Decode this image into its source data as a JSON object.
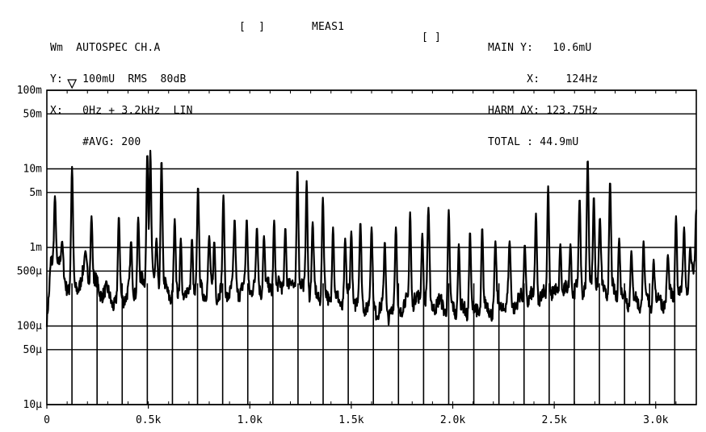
{
  "header": {
    "left": [
      {
        "label": "Wm",
        "value": "AUTOSPEC CH.A"
      },
      {
        "label": "Y:",
        "value": "100mU  RMS  80dB"
      },
      {
        "label": "X:",
        "value": "0Hz + 3.2kHz  LIN"
      },
      {
        "label": "",
        "value": "#AVG: 200"
      }
    ],
    "bracket_1": "[  ]",
    "meas": "MEAS1",
    "bracket_2": "[ ]",
    "right": [
      {
        "label": "MAIN Y:",
        "value": "10.6mU"
      },
      {
        "label": "X:",
        "value": "124Hz"
      },
      {
        "label": "HARM ΔX:",
        "value": "123.75Hz"
      },
      {
        "label": "TOTAL :",
        "value": "44.9mU"
      }
    ]
  },
  "chart_data": {
    "type": "line",
    "title": "AUTOSPEC CH.A",
    "xlabel": "",
    "ylabel": "",
    "xlim": [
      0,
      3200
    ],
    "ylim": [
      1e-05,
      0.1
    ],
    "yscale": "log",
    "grid": true,
    "x_ticks": [
      {
        "value": 0,
        "label": "0"
      },
      {
        "value": 500,
        "label": "0.5k"
      },
      {
        "value": 1000,
        "label": "1.0k"
      },
      {
        "value": 1500,
        "label": "1.5k"
      },
      {
        "value": 2000,
        "label": "2.0k"
      },
      {
        "value": 2500,
        "label": "2.5k"
      },
      {
        "value": 3000,
        "label": "3.0k"
      }
    ],
    "y_ticks": [
      {
        "value": 0.1,
        "label": "100m"
      },
      {
        "value": 0.05,
        "label": "50m"
      },
      {
        "value": 0.01,
        "label": "10m"
      },
      {
        "value": 0.005,
        "label": "5m"
      },
      {
        "value": 0.001,
        "label": "1m"
      },
      {
        "value": 0.0005,
        "label": "500µ"
      },
      {
        "value": 0.0001,
        "label": "100µ"
      },
      {
        "value": 5e-05,
        "label": "50µ"
      },
      {
        "value": 1e-05,
        "label": "10µ"
      }
    ],
    "marker": {
      "x": 124,
      "y": 0.0106
    },
    "harmonic_spacing_hz": 123.75,
    "harmonic_count": 25,
    "baseline": [
      [
        0,
        0.00012
      ],
      [
        10,
        0.0002
      ],
      [
        20,
        0.0006
      ],
      [
        40,
        0.0007
      ],
      [
        60,
        0.0006
      ],
      [
        90,
        0.0004
      ],
      [
        110,
        0.0003
      ],
      [
        140,
        0.0003
      ],
      [
        170,
        0.0004
      ],
      [
        200,
        0.0005
      ],
      [
        230,
        0.00035
      ],
      [
        260,
        0.0003
      ],
      [
        300,
        0.00025
      ],
      [
        340,
        0.0002
      ],
      [
        380,
        0.00025
      ],
      [
        420,
        0.00028
      ],
      [
        460,
        0.00032
      ],
      [
        500,
        0.0004
      ],
      [
        540,
        0.00035
      ],
      [
        580,
        0.0003
      ],
      [
        620,
        0.00025
      ],
      [
        660,
        0.00022
      ],
      [
        700,
        0.00025
      ],
      [
        750,
        0.0003
      ],
      [
        800,
        0.00028
      ],
      [
        850,
        0.00025
      ],
      [
        900,
        0.00028
      ],
      [
        950,
        0.0003
      ],
      [
        1000,
        0.00032
      ],
      [
        1050,
        0.0003
      ],
      [
        1100,
        0.00028
      ],
      [
        1150,
        0.0003
      ],
      [
        1200,
        0.00033
      ],
      [
        1250,
        0.0003
      ],
      [
        1300,
        0.00027
      ],
      [
        1350,
        0.00025
      ],
      [
        1400,
        0.00022
      ],
      [
        1450,
        0.0002
      ],
      [
        1500,
        0.00022
      ],
      [
        1550,
        0.0002
      ],
      [
        1600,
        0.00018
      ],
      [
        1650,
        0.00016
      ],
      [
        1700,
        0.00015
      ],
      [
        1750,
        0.00017
      ],
      [
        1800,
        0.0002
      ],
      [
        1850,
        0.00022
      ],
      [
        1900,
        0.0002
      ],
      [
        1950,
        0.00018
      ],
      [
        2000,
        0.00016
      ],
      [
        2050,
        0.00015
      ],
      [
        2100,
        0.00015
      ],
      [
        2150,
        0.00016
      ],
      [
        2200,
        0.00017
      ],
      [
        2250,
        0.00019
      ],
      [
        2300,
        0.0002
      ],
      [
        2350,
        0.00021
      ],
      [
        2400,
        0.00022
      ],
      [
        2450,
        0.00024
      ],
      [
        2500,
        0.00025
      ],
      [
        2550,
        0.00026
      ],
      [
        2600,
        0.00028
      ],
      [
        2650,
        0.00032
      ],
      [
        2700,
        0.00035
      ],
      [
        2750,
        0.0003
      ],
      [
        2800,
        0.00026
      ],
      [
        2850,
        0.00022
      ],
      [
        2900,
        0.0002
      ],
      [
        2950,
        0.00019
      ],
      [
        3000,
        0.0002
      ],
      [
        3050,
        0.00022
      ],
      [
        3100,
        0.00024
      ],
      [
        3150,
        0.0003
      ],
      [
        3200,
        0.0005
      ]
    ],
    "peaks": [
      [
        40,
        0.0045
      ],
      [
        75,
        0.0012
      ],
      [
        124,
        0.0106
      ],
      [
        190,
        0.0009
      ],
      [
        220,
        0.0025
      ],
      [
        355,
        0.0025
      ],
      [
        415,
        0.0012
      ],
      [
        450,
        0.0024
      ],
      [
        495,
        0.016
      ],
      [
        510,
        0.017
      ],
      [
        540,
        0.0013
      ],
      [
        565,
        0.013
      ],
      [
        630,
        0.0023
      ],
      [
        660,
        0.0013
      ],
      [
        715,
        0.0013
      ],
      [
        745,
        0.006
      ],
      [
        800,
        0.0014
      ],
      [
        825,
        0.0012
      ],
      [
        870,
        0.0046
      ],
      [
        925,
        0.0023
      ],
      [
        985,
        0.0023
      ],
      [
        1035,
        0.0018
      ],
      [
        1070,
        0.0014
      ],
      [
        1120,
        0.0022
      ],
      [
        1175,
        0.0018
      ],
      [
        1235,
        0.01
      ],
      [
        1280,
        0.007
      ],
      [
        1310,
        0.0021
      ],
      [
        1360,
        0.0043
      ],
      [
        1410,
        0.0018
      ],
      [
        1470,
        0.0013
      ],
      [
        1500,
        0.0016
      ],
      [
        1545,
        0.0021
      ],
      [
        1600,
        0.0018
      ],
      [
        1665,
        0.0012
      ],
      [
        1720,
        0.0018
      ],
      [
        1790,
        0.0028
      ],
      [
        1850,
        0.0015
      ],
      [
        1880,
        0.0032
      ],
      [
        1980,
        0.003
      ],
      [
        2030,
        0.0011
      ],
      [
        2085,
        0.0016
      ],
      [
        2145,
        0.0018
      ],
      [
        2210,
        0.0012
      ],
      [
        2280,
        0.0012
      ],
      [
        2355,
        0.0011
      ],
      [
        2410,
        0.0027
      ],
      [
        2470,
        0.006
      ],
      [
        2530,
        0.0011
      ],
      [
        2580,
        0.0011
      ],
      [
        2625,
        0.0042
      ],
      [
        2665,
        0.0135
      ],
      [
        2695,
        0.0045
      ],
      [
        2725,
        0.0024
      ],
      [
        2775,
        0.007
      ],
      [
        2820,
        0.0013
      ],
      [
        2880,
        0.0009
      ],
      [
        2940,
        0.0012
      ],
      [
        2990,
        0.0007
      ],
      [
        3060,
        0.0008
      ],
      [
        3100,
        0.0025
      ],
      [
        3140,
        0.0018
      ],
      [
        3170,
        0.001
      ],
      [
        3200,
        0.003
      ]
    ]
  }
}
